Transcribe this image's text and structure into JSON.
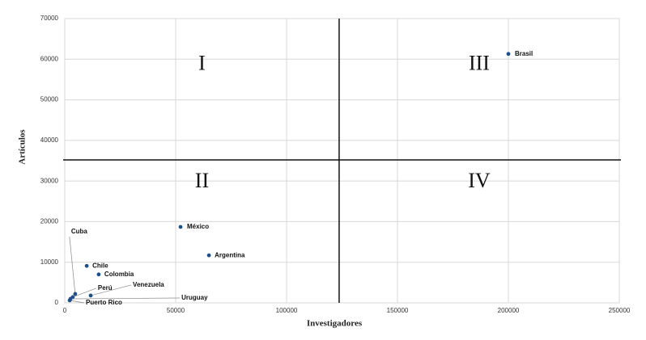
{
  "chart_data": {
    "type": "scatter",
    "x_label": "Investigadores",
    "y_label": "Artículos",
    "xlim": [
      0,
      250000
    ],
    "ylim": [
      0,
      70000
    ],
    "xticks": [
      0,
      50000,
      100000,
      150000,
      200000,
      250000
    ],
    "yticks": [
      0,
      10000,
      20000,
      30000,
      40000,
      50000,
      60000,
      70000
    ],
    "grid": true,
    "color": "#1f4e8c",
    "points": [
      {
        "name": "Brasil",
        "x": 200000,
        "y": 61300
      },
      {
        "name": "México",
        "x": 52200,
        "y": 18700
      },
      {
        "name": "Argentina",
        "x": 65000,
        "y": 11700
      },
      {
        "name": "Chile",
        "x": 9900,
        "y": 9100
      },
      {
        "name": "Colombia",
        "x": 15300,
        "y": 7000
      },
      {
        "name": "Cuba",
        "x": 4700,
        "y": 2200
      },
      {
        "name": "Perú",
        "x": 3600,
        "y": 1400
      },
      {
        "name": "Venezuela",
        "x": 11700,
        "y": 1800
      },
      {
        "name": "Uruguay",
        "x": 2600,
        "y": 1000
      },
      {
        "name": "Puerto Rico",
        "x": 2200,
        "y": 600
      }
    ],
    "quadrant_x": 123700,
    "quadrant_y": 35200,
    "quadrant_labels": [
      "I",
      "II",
      "III",
      "IV"
    ]
  }
}
